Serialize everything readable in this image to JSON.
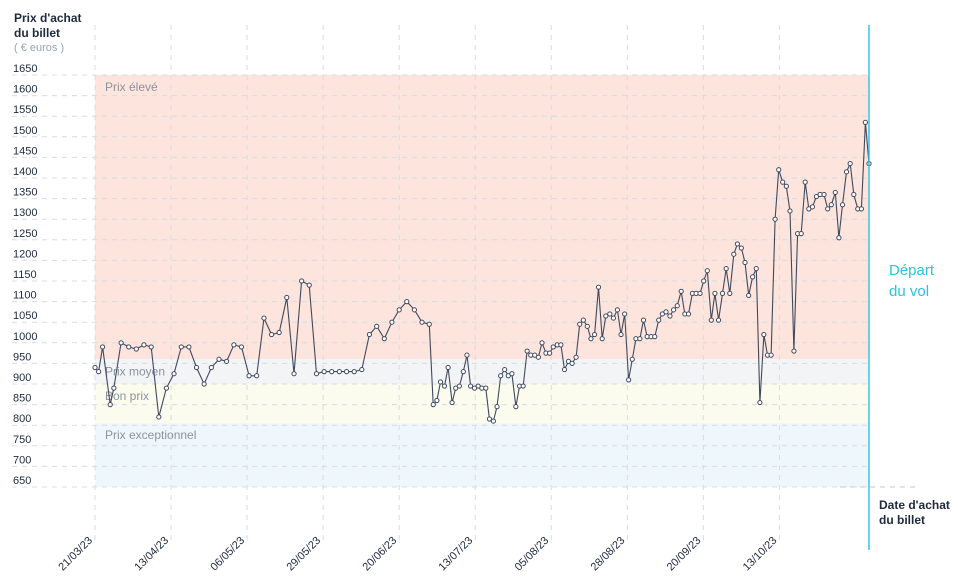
{
  "chart_data": {
    "type": "line",
    "ylabel": "Prix d'achat du billet",
    "yunit": "( € euros )",
    "xlabel": "Date d'achat du billet",
    "ylim": [
      650,
      1650
    ],
    "y_ticks": [
      650,
      700,
      750,
      800,
      850,
      900,
      950,
      1000,
      1050,
      1100,
      1150,
      1200,
      1250,
      1300,
      1350,
      1400,
      1450,
      1500,
      1550,
      1600,
      1650
    ],
    "x_ticks": [
      "21/03/23",
      "13/04/23",
      "06/05/23",
      "29/05/23",
      "20/06/23",
      "13/07/23",
      "05/08/23",
      "28/08/23",
      "20/09/23",
      "13/10/23"
    ],
    "bands": [
      {
        "label": "Prix élevé",
        "from": 960,
        "to": 1650,
        "color": "#fde4dc"
      },
      {
        "label": "Prix moyen",
        "from": 900,
        "to": 960,
        "color": "#f3f4f6"
      },
      {
        "label": "Bon prix",
        "from": 805,
        "to": 900,
        "color": "#fbfbee"
      },
      {
        "label": "Prix exceptionnel",
        "from": 650,
        "to": 805,
        "color": "#eef7fc"
      }
    ],
    "annotation": {
      "label": "Départ du vol",
      "color": "#29c4dd"
    },
    "series": [
      {
        "color": "#3f4a5e",
        "values": [
          [
            0.0,
            940
          ],
          [
            1.1,
            930
          ],
          [
            2.3,
            990
          ],
          [
            4.6,
            850
          ],
          [
            5.7,
            890
          ],
          [
            7.9,
            1000
          ],
          [
            10.2,
            990
          ],
          [
            12.5,
            985
          ],
          [
            14.8,
            995
          ],
          [
            17.0,
            990
          ],
          [
            19.3,
            820
          ],
          [
            21.6,
            890
          ],
          [
            23.9,
            925
          ],
          [
            26.1,
            990
          ],
          [
            28.4,
            990
          ],
          [
            30.7,
            940
          ],
          [
            33.0,
            900
          ],
          [
            35.2,
            940
          ],
          [
            37.5,
            960
          ],
          [
            39.8,
            955
          ],
          [
            42.0,
            995
          ],
          [
            44.3,
            990
          ],
          [
            46.6,
            920
          ],
          [
            48.9,
            920
          ],
          [
            51.1,
            1060
          ],
          [
            53.4,
            1020
          ],
          [
            55.7,
            1025
          ],
          [
            58.0,
            1110
          ],
          [
            60.2,
            925
          ],
          [
            62.5,
            1150
          ],
          [
            64.8,
            1140
          ],
          [
            67.0,
            925
          ],
          [
            69.3,
            930
          ],
          [
            71.6,
            930
          ],
          [
            73.9,
            930
          ],
          [
            76.1,
            930
          ],
          [
            78.4,
            930
          ],
          [
            80.7,
            935
          ],
          [
            83.0,
            1020
          ],
          [
            85.2,
            1040
          ],
          [
            87.5,
            1010
          ],
          [
            89.8,
            1050
          ],
          [
            92.0,
            1080
          ],
          [
            94.3,
            1100
          ],
          [
            96.6,
            1080
          ],
          [
            98.9,
            1050
          ],
          [
            101.1,
            1045
          ],
          [
            102.3,
            850
          ],
          [
            103.4,
            860
          ],
          [
            104.5,
            905
          ],
          [
            105.7,
            895
          ],
          [
            106.8,
            940
          ],
          [
            108.0,
            855
          ],
          [
            109.1,
            890
          ],
          [
            110.2,
            895
          ],
          [
            111.4,
            930
          ],
          [
            112.5,
            970
          ],
          [
            113.6,
            895
          ],
          [
            114.8,
            890
          ],
          [
            115.9,
            895
          ],
          [
            117.0,
            890
          ],
          [
            118.2,
            890
          ],
          [
            119.3,
            815
          ],
          [
            120.5,
            810
          ],
          [
            121.6,
            845
          ],
          [
            122.7,
            920
          ],
          [
            123.9,
            935
          ],
          [
            125.0,
            920
          ],
          [
            126.1,
            925
          ],
          [
            127.3,
            845
          ],
          [
            128.4,
            895
          ],
          [
            129.5,
            895
          ],
          [
            130.7,
            980
          ],
          [
            131.8,
            970
          ],
          [
            133.0,
            970
          ],
          [
            134.1,
            965
          ],
          [
            135.2,
            1000
          ],
          [
            136.4,
            975
          ],
          [
            137.5,
            975
          ],
          [
            138.6,
            990
          ],
          [
            139.8,
            995
          ],
          [
            140.9,
            995
          ],
          [
            142.0,
            935
          ],
          [
            143.2,
            955
          ],
          [
            144.3,
            950
          ],
          [
            145.5,
            965
          ],
          [
            146.6,
            1045
          ],
          [
            147.7,
            1055
          ],
          [
            148.9,
            1040
          ],
          [
            150.0,
            1010
          ],
          [
            151.1,
            1020
          ],
          [
            152.3,
            1135
          ],
          [
            153.4,
            1010
          ],
          [
            154.5,
            1065
          ],
          [
            155.7,
            1070
          ],
          [
            156.8,
            1060
          ],
          [
            158.0,
            1080
          ],
          [
            159.1,
            1020
          ],
          [
            160.2,
            1070
          ],
          [
            161.4,
            910
          ],
          [
            162.5,
            960
          ],
          [
            163.6,
            1010
          ],
          [
            164.8,
            1010
          ],
          [
            165.9,
            1055
          ],
          [
            167.0,
            1015
          ],
          [
            168.2,
            1015
          ],
          [
            169.3,
            1015
          ],
          [
            170.5,
            1055
          ],
          [
            171.6,
            1070
          ],
          [
            172.7,
            1075
          ],
          [
            173.9,
            1065
          ],
          [
            175.0,
            1080
          ],
          [
            176.1,
            1090
          ],
          [
            177.3,
            1125
          ],
          [
            178.4,
            1070
          ],
          [
            179.5,
            1070
          ],
          [
            180.7,
            1120
          ],
          [
            181.8,
            1120
          ],
          [
            183.0,
            1120
          ],
          [
            184.1,
            1150
          ],
          [
            185.2,
            1175
          ],
          [
            186.4,
            1055
          ],
          [
            187.5,
            1120
          ],
          [
            188.6,
            1055
          ],
          [
            189.8,
            1120
          ],
          [
            190.9,
            1180
          ],
          [
            192.0,
            1120
          ],
          [
            193.2,
            1215
          ],
          [
            194.3,
            1240
          ],
          [
            195.5,
            1230
          ],
          [
            196.6,
            1195
          ],
          [
            197.7,
            1115
          ],
          [
            198.9,
            1160
          ],
          [
            200.0,
            1180
          ],
          [
            201.1,
            855
          ],
          [
            202.3,
            1020
          ],
          [
            203.4,
            970
          ],
          [
            204.5,
            970
          ],
          [
            205.7,
            1300
          ],
          [
            206.8,
            1420
          ],
          [
            208.0,
            1390
          ],
          [
            209.1,
            1380
          ],
          [
            210.2,
            1320
          ],
          [
            211.4,
            980
          ],
          [
            212.5,
            1265
          ],
          [
            213.6,
            1265
          ],
          [
            214.8,
            1390
          ],
          [
            215.9,
            1325
          ],
          [
            217.0,
            1330
          ],
          [
            218.2,
            1355
          ],
          [
            219.3,
            1360
          ],
          [
            220.5,
            1360
          ],
          [
            221.6,
            1325
          ],
          [
            222.7,
            1335
          ],
          [
            223.9,
            1365
          ],
          [
            225.0,
            1255
          ],
          [
            226.1,
            1335
          ],
          [
            227.3,
            1415
          ],
          [
            228.4,
            1435
          ],
          [
            229.5,
            1360
          ],
          [
            230.7,
            1325
          ],
          [
            231.8,
            1325
          ],
          [
            233.0,
            1535
          ],
          [
            234.1,
            1435
          ]
        ]
      }
    ]
  }
}
